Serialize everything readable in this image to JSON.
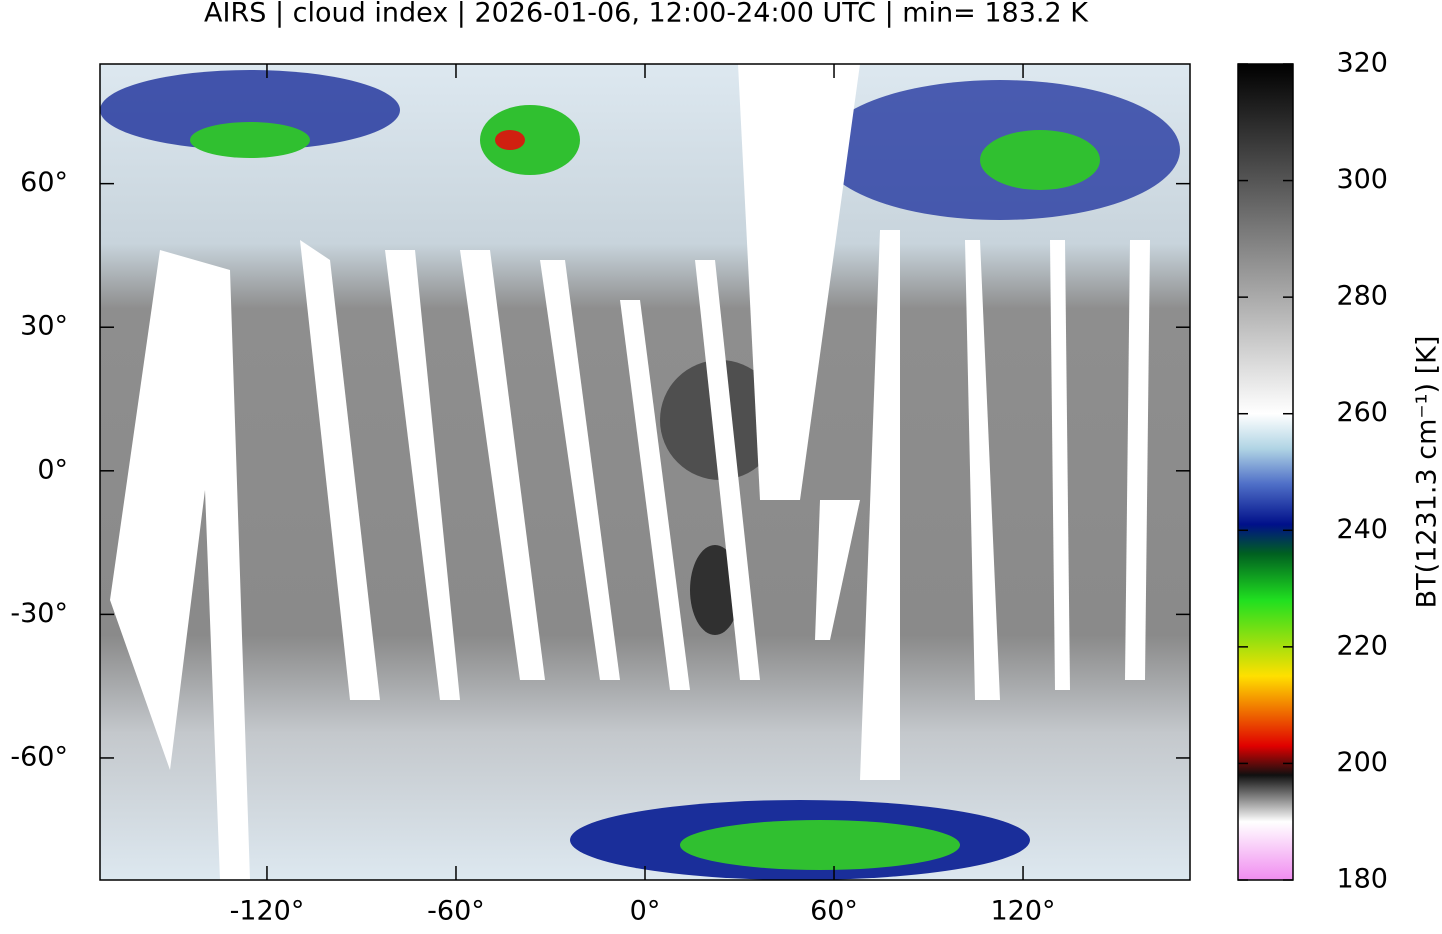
{
  "title": "AIRS | cloud index | 2026-01-06, 12:00-24:00 UTC | min= 183.2 K",
  "map": {
    "xlim": [
      -173,
      173
    ],
    "ylim": [
      -85.5,
      85
    ],
    "xticks": [
      {
        "value": -120,
        "label": "-120°"
      },
      {
        "value": -60,
        "label": "-60°"
      },
      {
        "value": 0,
        "label": "0°"
      },
      {
        "value": 60,
        "label": "60°"
      },
      {
        "value": 120,
        "label": "120°"
      }
    ],
    "yticks": [
      {
        "value": 60,
        "label": "60°"
      },
      {
        "value": 30,
        "label": "30°"
      },
      {
        "value": 0,
        "label": "0°"
      },
      {
        "value": -30,
        "label": "-30°"
      },
      {
        "value": -60,
        "label": "-60°"
      }
    ]
  },
  "colorbar": {
    "label": "BT(1231.3 cm⁻¹) [K]",
    "lim": [
      180,
      320
    ],
    "ticks": [
      180,
      200,
      220,
      240,
      260,
      280,
      300,
      320
    ],
    "stops": [
      {
        "value": 180,
        "color": "#f08cf0"
      },
      {
        "value": 190,
        "color": "#ffffff"
      },
      {
        "value": 198,
        "color": "#101010"
      },
      {
        "value": 203,
        "color": "#e00000"
      },
      {
        "value": 215,
        "color": "#ffe000"
      },
      {
        "value": 228,
        "color": "#20e020"
      },
      {
        "value": 236,
        "color": "#006020"
      },
      {
        "value": 241,
        "color": "#00108a"
      },
      {
        "value": 248,
        "color": "#5070c8"
      },
      {
        "value": 254,
        "color": "#b0d4e4"
      },
      {
        "value": 260,
        "color": "#ffffff"
      },
      {
        "value": 320,
        "color": "#000000"
      }
    ]
  }
}
